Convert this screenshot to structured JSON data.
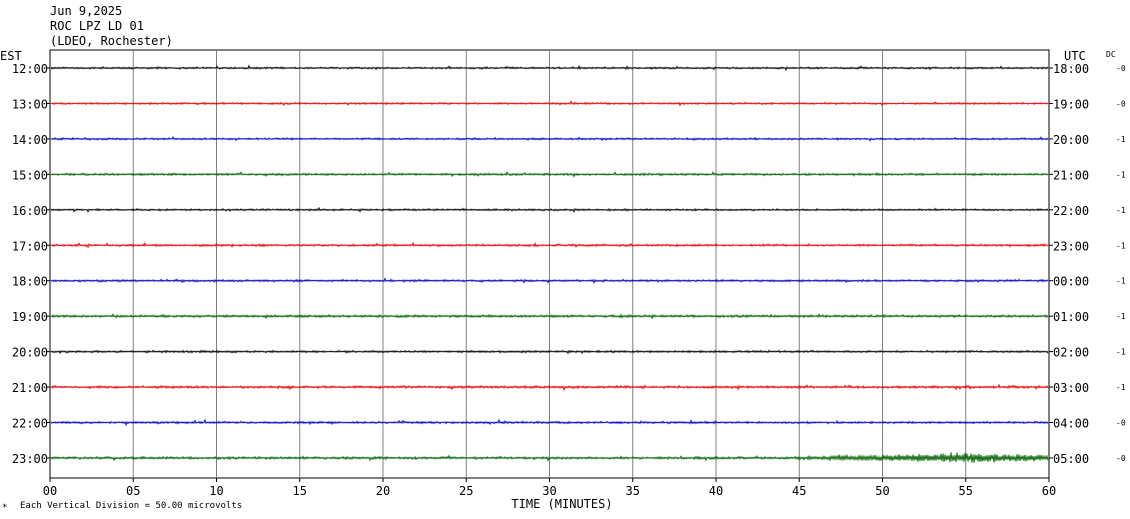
{
  "header": {
    "date": "Jun 9,2025",
    "station": "ROC LPZ LD 01",
    "network": "(LDEO, Rochester)"
  },
  "chart_data": {
    "type": "line",
    "title": "",
    "left_axis_label": "EST",
    "right_axis_label": "UTC",
    "dc_label": "DC",
    "xlabel": "TIME (MINUTES)",
    "xlim": [
      0,
      60
    ],
    "x_ticks": [
      "00",
      "05",
      "10",
      "15",
      "20",
      "25",
      "30",
      "35",
      "40",
      "45",
      "50",
      "55",
      "60"
    ],
    "footnote": "Each Vertical Division =   50.00 microvolts",
    "trace_colors": [
      "#000000",
      "#e00000",
      "#0000c0",
      "#006000"
    ],
    "rows": [
      {
        "est": "12:00",
        "utc": "18:00",
        "dc": "-0",
        "amplitude": 0.8
      },
      {
        "est": "13:00",
        "utc": "19:00",
        "dc": "-0",
        "amplitude": 0.8
      },
      {
        "est": "14:00",
        "utc": "20:00",
        "dc": "-1",
        "amplitude": 0.8
      },
      {
        "est": "15:00",
        "utc": "21:00",
        "dc": "-1",
        "amplitude": 0.9
      },
      {
        "est": "16:00",
        "utc": "22:00",
        "dc": "-1",
        "amplitude": 0.8
      },
      {
        "est": "17:00",
        "utc": "23:00",
        "dc": "-1",
        "amplitude": 0.9
      },
      {
        "est": "18:00",
        "utc": "00:00",
        "dc": "-1",
        "amplitude": 0.9
      },
      {
        "est": "19:00",
        "utc": "01:00",
        "dc": "-1",
        "amplitude": 1.0
      },
      {
        "est": "20:00",
        "utc": "02:00",
        "dc": "-1",
        "amplitude": 0.9
      },
      {
        "est": "21:00",
        "utc": "03:00",
        "dc": "-1",
        "amplitude": 1.0
      },
      {
        "est": "22:00",
        "utc": "04:00",
        "dc": "-0",
        "amplitude": 0.9
      },
      {
        "est": "23:00",
        "utc": "05:00",
        "dc": "-0",
        "amplitude": 1.0,
        "events": [
          {
            "start": 44,
            "end": 60,
            "peak": 54.5,
            "amplitude": 4.5
          }
        ]
      }
    ]
  }
}
